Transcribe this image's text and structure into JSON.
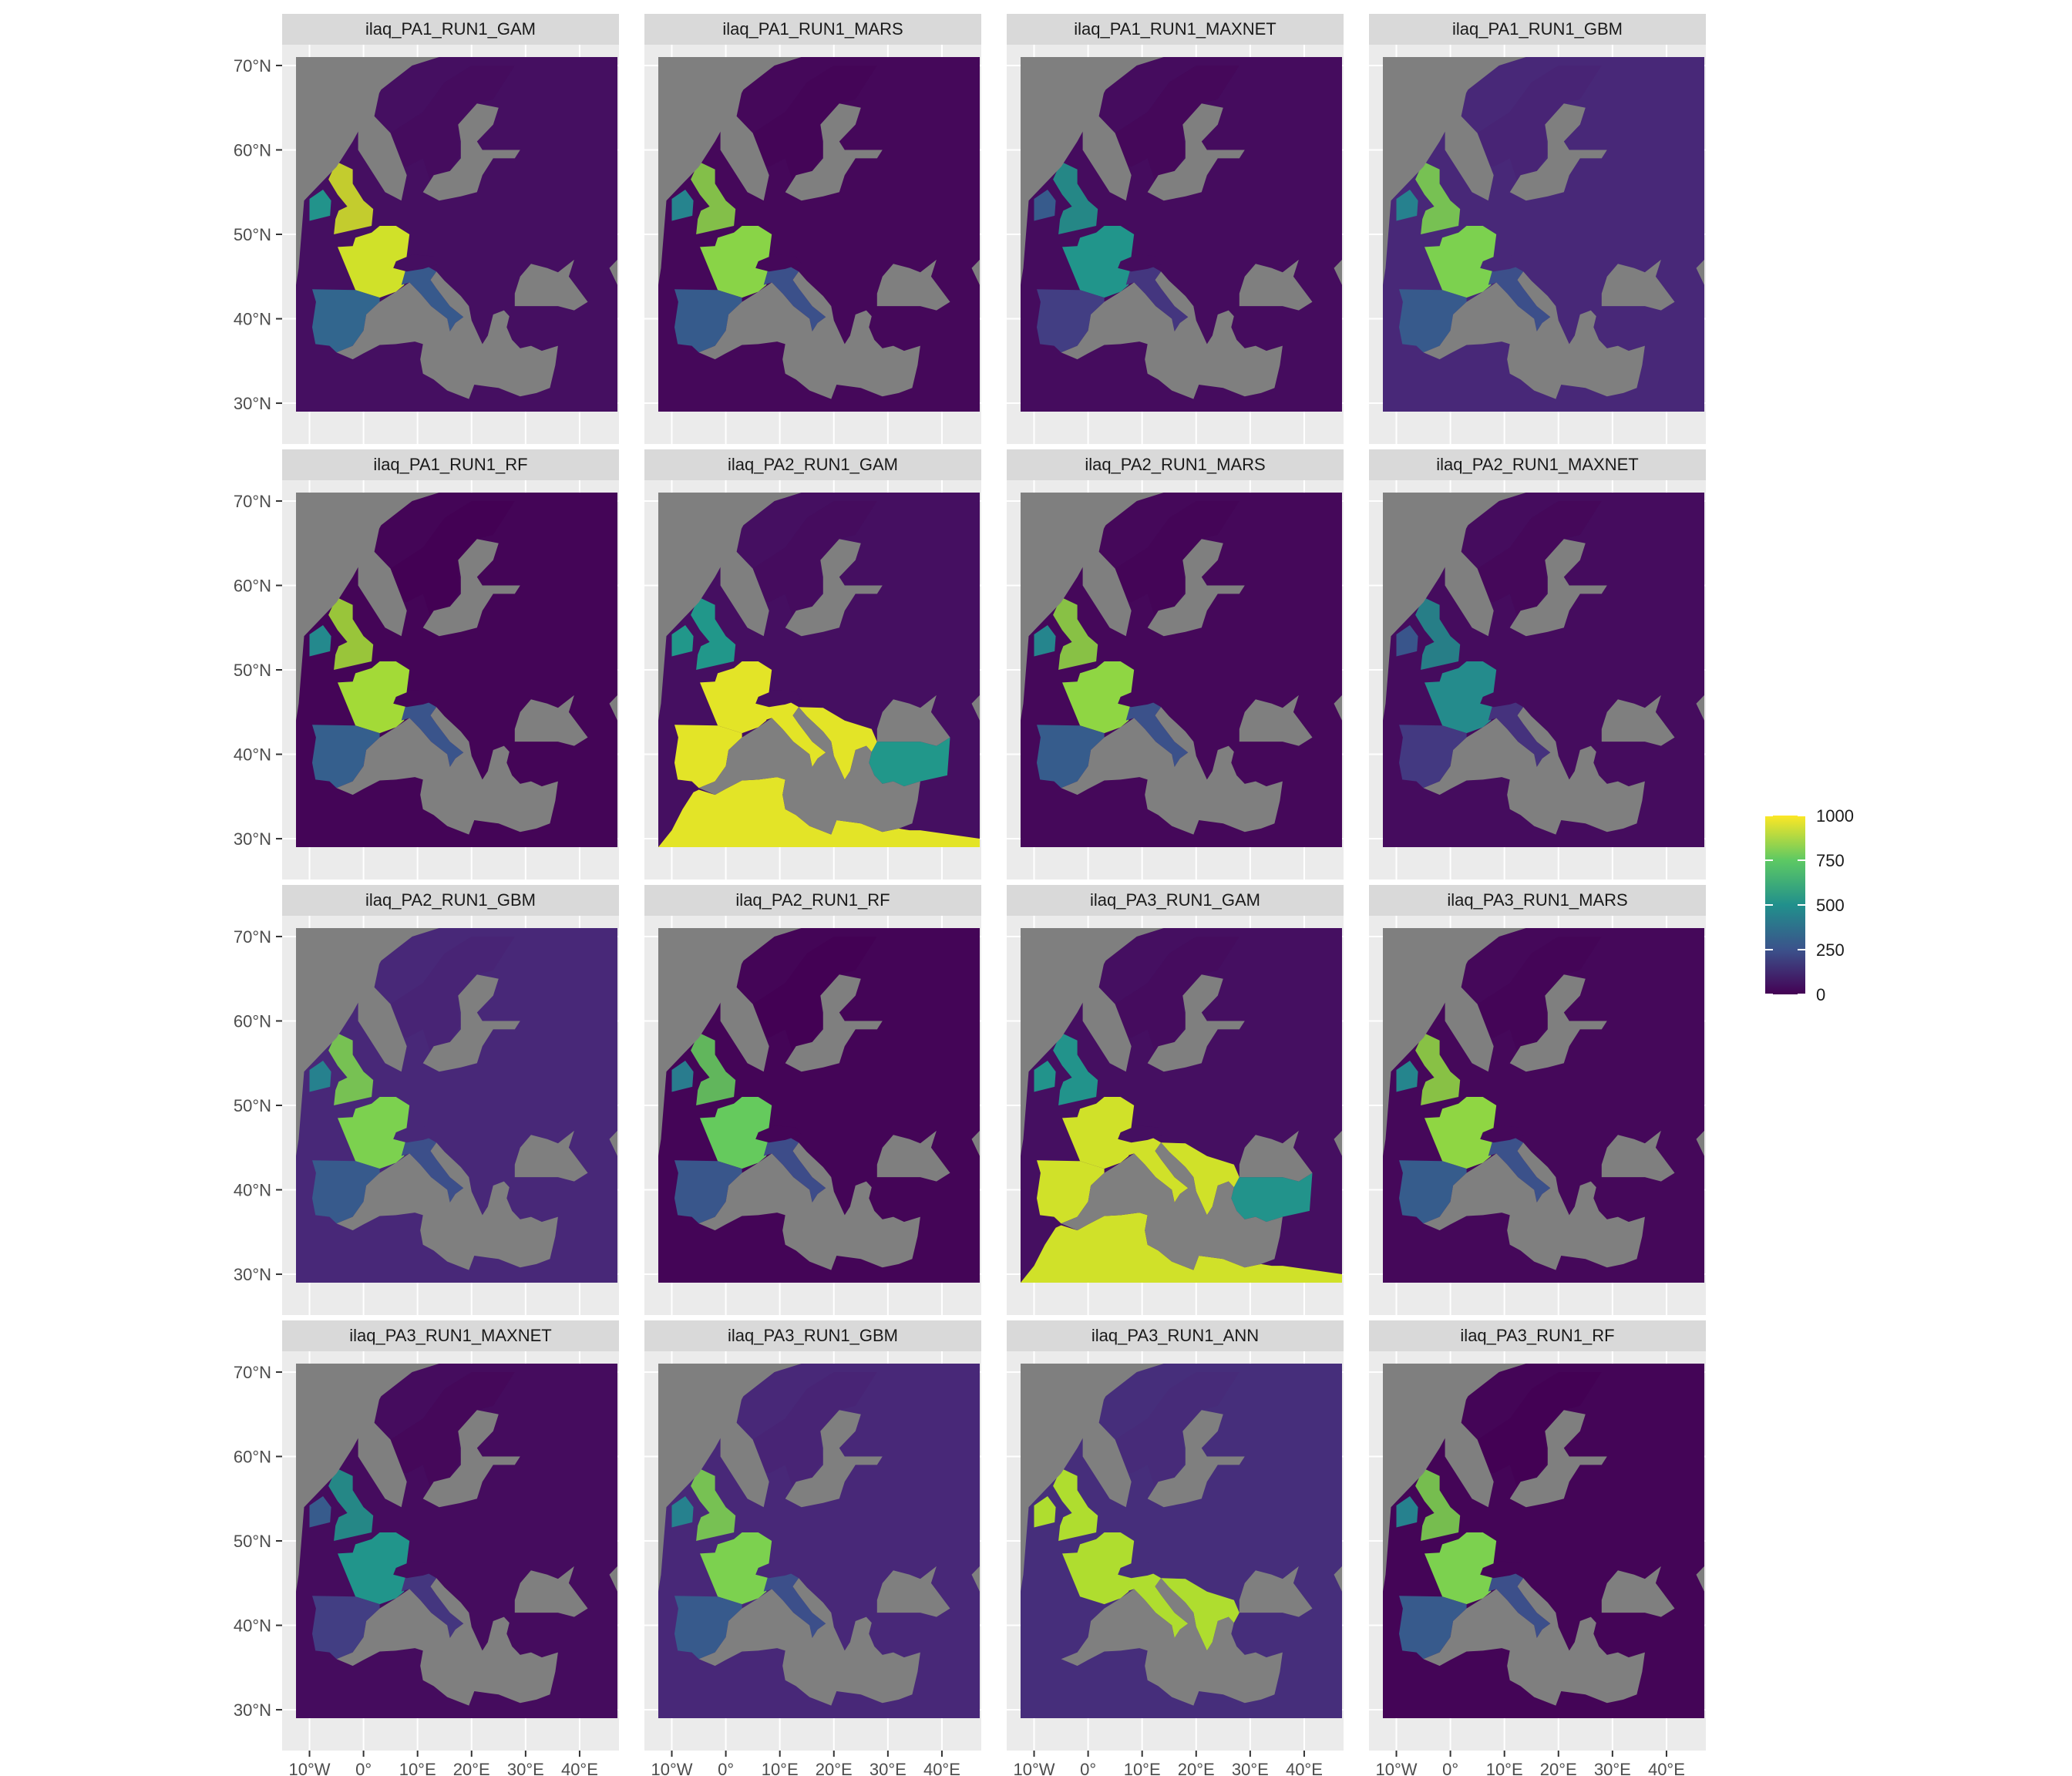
{
  "chart_data": {
    "type": "heatmap",
    "title": "",
    "xlabel": "",
    "ylabel": "",
    "grid": true,
    "layout": "4x4 small multiples (facets)",
    "color_scale": {
      "name": "viridis",
      "min": 0,
      "max": 1000,
      "low_color": "#440154",
      "mid_color": "#21908C",
      "high_color": "#FDE725",
      "na_color": "#7F7F7F"
    },
    "legend": {
      "position": "right",
      "ticks": [
        "1000",
        "750",
        "500",
        "250",
        "0"
      ],
      "tick_values": [
        1000,
        750,
        500,
        250,
        0
      ]
    },
    "x_axis": {
      "ticks": [
        "10°W",
        "0°",
        "10°E",
        "20°E",
        "30°E",
        "40°E"
      ],
      "tick_values": [
        -10,
        0,
        10,
        20,
        30,
        40
      ],
      "range": [
        -12.5,
        47
      ]
    },
    "y_axis": {
      "ticks": [
        "70°N",
        "60°N",
        "50°N",
        "40°N",
        "30°N"
      ],
      "tick_values": [
        70,
        60,
        50,
        40,
        30
      ],
      "range": [
        29,
        71
      ]
    },
    "panels": [
      {
        "title": "ilaq_PA1_RUN1_GAM",
        "pattern": "west",
        "level": 930,
        "east_level": 40
      },
      {
        "title": "ilaq_PA1_RUN1_MARS",
        "pattern": "west",
        "level": 820,
        "east_level": 20
      },
      {
        "title": "ilaq_PA1_RUN1_MAXNET",
        "pattern": "west",
        "level": 520,
        "east_level": 30
      },
      {
        "title": "ilaq_PA1_RUN1_GBM",
        "pattern": "west",
        "level": 800,
        "east_level": 110
      },
      {
        "title": "ilaq_PA1_RUN1_RF",
        "pattern": "west",
        "level": 860,
        "east_level": 10
      },
      {
        "title": "ilaq_PA2_RUN1_GAM",
        "pattern": "south",
        "level": 960,
        "east_level": 40
      },
      {
        "title": "ilaq_PA2_RUN1_MARS",
        "pattern": "west",
        "level": 830,
        "east_level": 20
      },
      {
        "title": "ilaq_PA2_RUN1_MAXNET",
        "pattern": "west",
        "level": 480,
        "east_level": 30
      },
      {
        "title": "ilaq_PA2_RUN1_GBM",
        "pattern": "west",
        "level": 800,
        "east_level": 110
      },
      {
        "title": "ilaq_PA2_RUN1_RF",
        "pattern": "west",
        "level": 760,
        "east_level": 10
      },
      {
        "title": "ilaq_PA3_RUN1_GAM",
        "pattern": "south",
        "level": 930,
        "east_level": 40
      },
      {
        "title": "ilaq_PA3_RUN1_MARS",
        "pattern": "west",
        "level": 830,
        "east_level": 20
      },
      {
        "title": "ilaq_PA3_RUN1_MAXNET",
        "pattern": "west",
        "level": 520,
        "east_level": 30
      },
      {
        "title": "ilaq_PA3_RUN1_GBM",
        "pattern": "west",
        "level": 800,
        "east_level": 110
      },
      {
        "title": "ilaq_PA3_RUN1_ANN",
        "pattern": "binary",
        "level": 880,
        "east_level": 130
      },
      {
        "title": "ilaq_PA3_RUN1_RF",
        "pattern": "west",
        "level": 800,
        "east_level": 10
      }
    ]
  }
}
